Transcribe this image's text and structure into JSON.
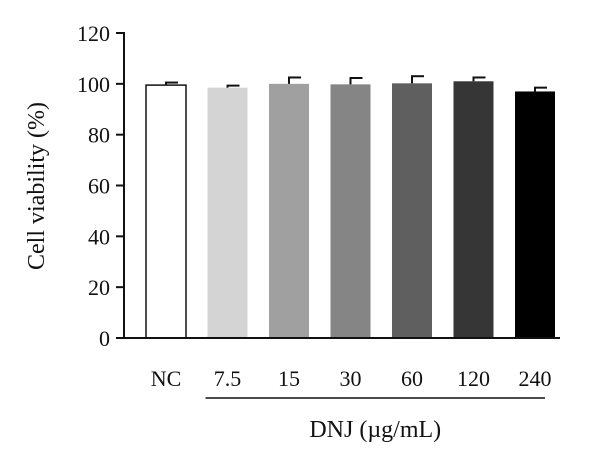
{
  "chart_data": {
    "type": "bar",
    "categories": [
      "NC",
      "7.5",
      "15",
      "30",
      "60",
      "120",
      "240"
    ],
    "values": [
      99.5,
      98.5,
      100.0,
      99.8,
      100.2,
      101.0,
      97.0
    ],
    "errors": [
      1.0,
      0.8,
      2.5,
      2.5,
      2.8,
      1.5,
      1.5
    ],
    "bar_colors": [
      "#ffffff",
      "#d4d4d4",
      "#a0a0a0",
      "#858585",
      "#5f5f5f",
      "#363636",
      "#000000"
    ],
    "ylabel": "Cell viability (%)",
    "group_label": "DNJ (µg/mL)",
    "ylim": [
      0,
      120
    ],
    "yticks": [
      0,
      20,
      40,
      60,
      80,
      100,
      120
    ],
    "grid": false
  }
}
